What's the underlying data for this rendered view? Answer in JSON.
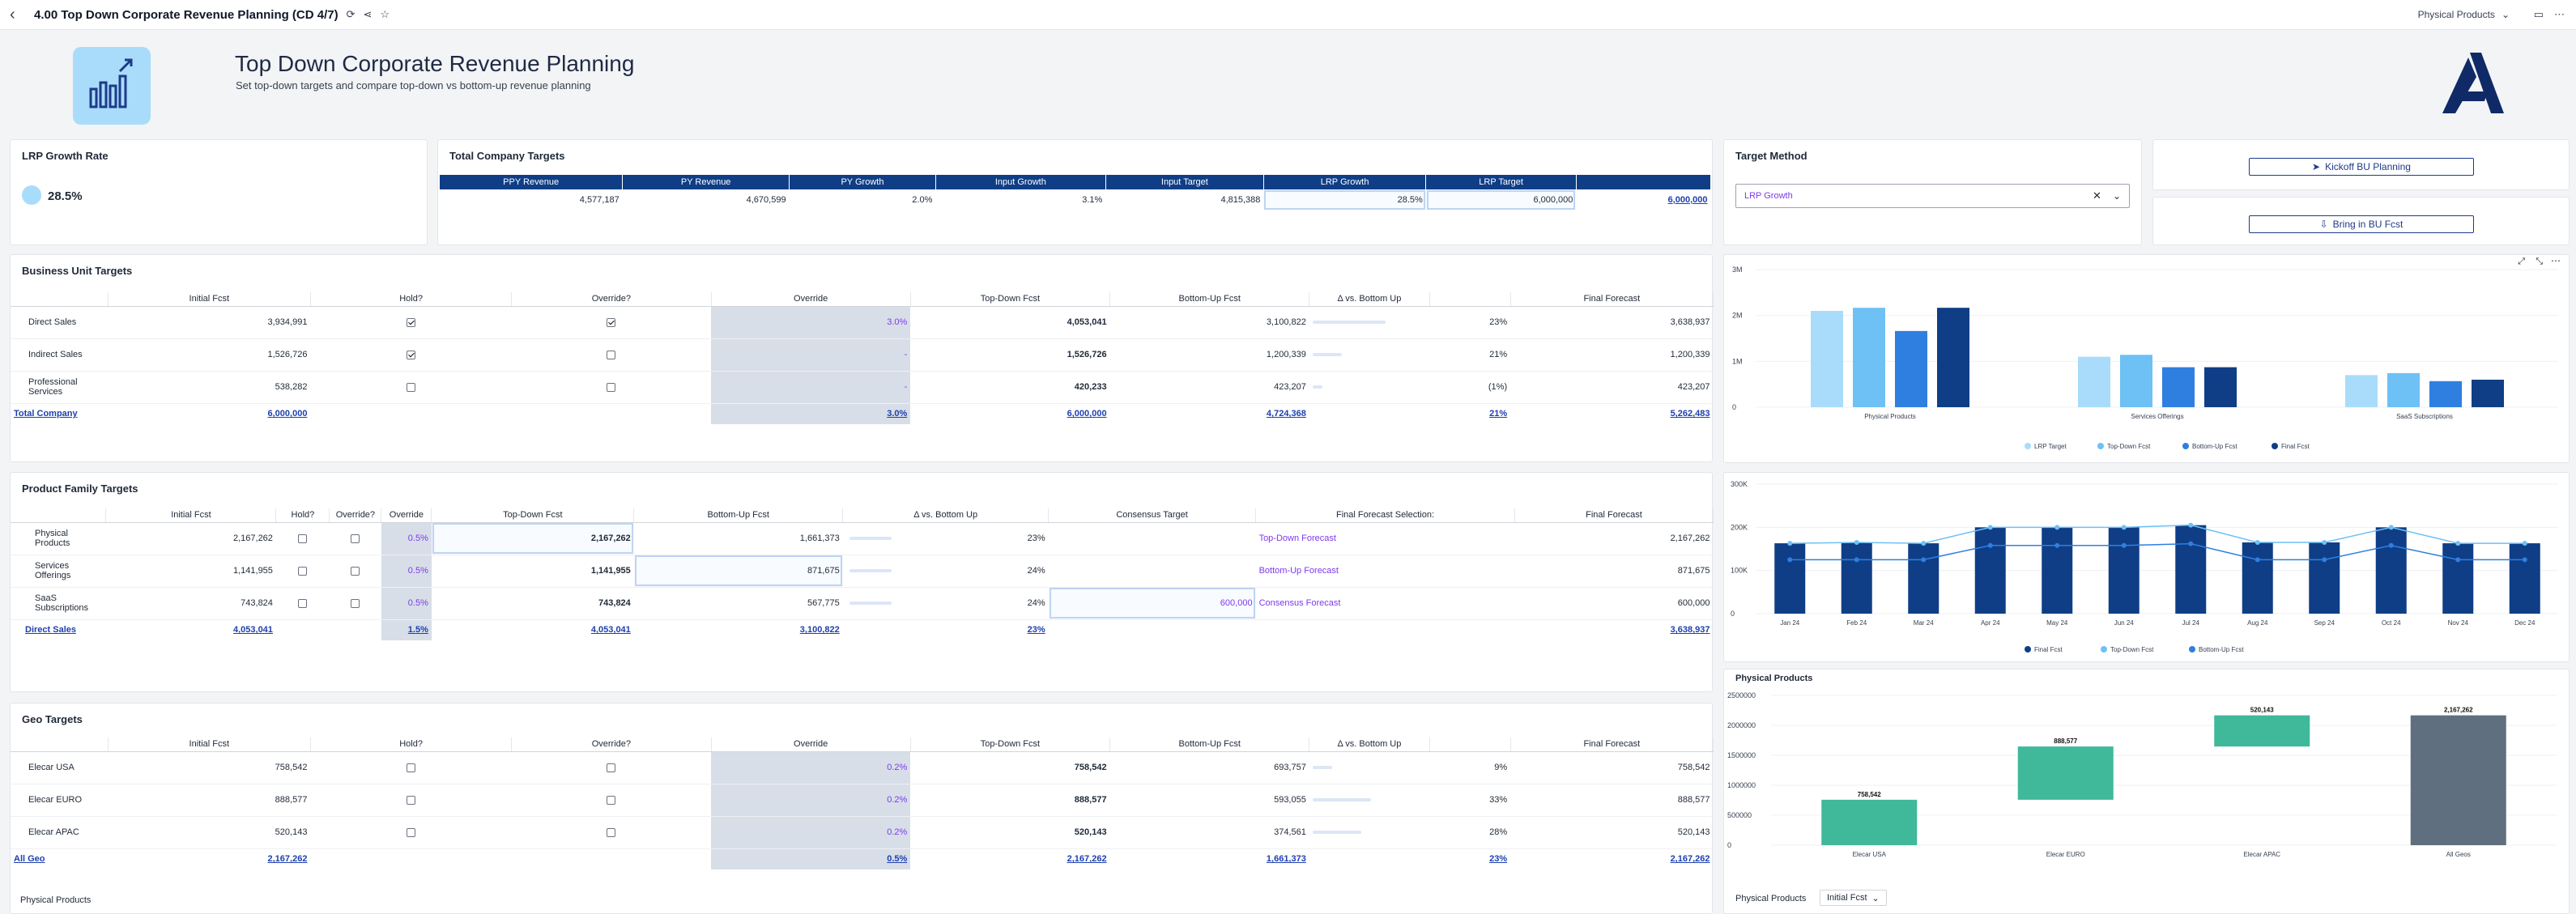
{
  "topbar": {
    "title": "4.00 Top Down Corporate Revenue Planning (CD 4/7)",
    "dropdown": "Physical Products"
  },
  "header": {
    "title": "Top Down Corporate Revenue Planning",
    "subtitle": "Set top-down targets and compare top-down vs bottom-up revenue planning"
  },
  "lrp": {
    "title": "LRP Growth Rate",
    "value": "28.5%"
  },
  "company": {
    "title": "Total Company Targets",
    "headers": [
      "PPY Revenue",
      "PY Revenue",
      "PY Growth",
      "Input Growth",
      "Input Target",
      "LRP Growth",
      "LRP Target",
      ""
    ],
    "values": [
      "4,577,187",
      "4,670,599",
      "2.0%",
      "3.1%",
      "4,815,388",
      "28.5%",
      "6,000,000",
      "6,000,000"
    ]
  },
  "target_method": {
    "title": "Target Method",
    "value": "LRP Growth"
  },
  "buttons": {
    "kickoff": "Kickoff BU Planning",
    "bring": "Bring in BU Fcst"
  },
  "bu": {
    "title": "Business Unit Targets",
    "headers": [
      "",
      "Initial Fcst",
      "Hold?",
      "Override?",
      "Override",
      "Top-Down Fcst",
      "Bottom-Up Fcst",
      "Δ vs. Bottom Up",
      "",
      "Final Forecast"
    ],
    "rows": [
      {
        "name": "Direct Sales",
        "initial": "3,934,991",
        "hold": true,
        "override_chk": true,
        "override": "3.0%",
        "td": "4,053,041",
        "bu": "3,100,822",
        "delta": "23%",
        "final": "3,638,937",
        "bar": 0.75
      },
      {
        "name": "Indirect Sales",
        "initial": "1,526,726",
        "hold": true,
        "override_chk": false,
        "override": "-",
        "td": "1,526,726",
        "bu": "1,200,339",
        "delta": "21%",
        "final": "1,200,339",
        "bar": 0.3
      },
      {
        "name": "Professional Services",
        "initial": "538,282",
        "hold": false,
        "override_chk": false,
        "override": "-",
        "td": "420,233",
        "bu": "423,207",
        "delta": "(1%)",
        "final": "423,207",
        "bar": 0.1
      }
    ],
    "total": {
      "name": "Total Company",
      "initial": "6,000,000",
      "override": "3.0%",
      "td": "6,000,000",
      "bu": "4,724,368",
      "delta": "21%",
      "final": "5,262,483"
    }
  },
  "pf": {
    "title": "Product Family Targets",
    "headers": [
      "",
      "Initial Fcst",
      "Hold?",
      "Override?",
      "Override",
      "Top-Down Fcst",
      "Bottom-Up Fcst",
      "Δ vs. Bottom Up",
      "Consensus Target",
      "Final Forecast Selection:",
      "Final Forecast"
    ],
    "rows": [
      {
        "name": "Physical Products",
        "initial": "2,167,262",
        "override": "0.5%",
        "td": "2,167,262",
        "bu": "1,661,373",
        "delta": "23%",
        "consensus": "",
        "sel": "Top-Down Forecast",
        "final": "2,167,262"
      },
      {
        "name": "Services Offerings",
        "initial": "1,141,955",
        "override": "0.5%",
        "td": "1,141,955",
        "bu": "871,675",
        "delta": "24%",
        "consensus": "",
        "sel": "Bottom-Up Forecast",
        "final": "871,675"
      },
      {
        "name": "SaaS Subscriptions",
        "initial": "743,824",
        "override": "0.5%",
        "td": "743,824",
        "bu": "567,775",
        "delta": "24%",
        "consensus": "600,000",
        "sel": "Consensus Forecast",
        "final": "600,000"
      }
    ],
    "total": {
      "name": "Direct Sales",
      "initial": "4,053,041",
      "override": "1.5%",
      "td": "4,053,041",
      "bu": "3,100,822",
      "delta": "23%",
      "final": "3,638,937"
    }
  },
  "geo": {
    "title": "Geo Targets",
    "headers": [
      "",
      "Initial Fcst",
      "Hold?",
      "Override?",
      "Override",
      "Top-Down Fcst",
      "Bottom-Up Fcst",
      "Δ vs. Bottom Up",
      "",
      "Final Forecast"
    ],
    "rows": [
      {
        "name": "Elecar USA",
        "initial": "758,542",
        "override": "0.2%",
        "td": "758,542",
        "bu": "693,757",
        "delta": "9%",
        "final": "758,542",
        "bar": 0.2
      },
      {
        "name": "Elecar EURO",
        "initial": "888,577",
        "override": "0.2%",
        "td": "888,577",
        "bu": "593,055",
        "delta": "33%",
        "final": "888,577",
        "bar": 0.6
      },
      {
        "name": "Elecar APAC",
        "initial": "520,143",
        "override": "0.2%",
        "td": "520,143",
        "bu": "374,561",
        "delta": "28%",
        "final": "520,143",
        "bar": 0.5
      }
    ],
    "total": {
      "name": "All Geo",
      "initial": "2,167,262",
      "override": "0.5%",
      "td": "2,167,262",
      "bu": "1,661,373",
      "delta": "23%",
      "final": "2,167,262"
    },
    "footer": "Physical Products"
  },
  "chart_data": [
    {
      "type": "bar",
      "categories": [
        "Physical Products",
        "Services Offerings",
        "SaaS Subscriptions"
      ],
      "series": [
        {
          "name": "LRP Target",
          "values": [
            2100000,
            1100000,
            700000
          ],
          "color": "#a9dcfa"
        },
        {
          "name": "Top-Down Fcst",
          "values": [
            2167262,
            1141955,
            743824
          ],
          "color": "#6ec1f4"
        },
        {
          "name": "Bottom-Up Fcst",
          "values": [
            1661373,
            871675,
            567775
          ],
          "color": "#2f7fe0"
        },
        {
          "name": "Final Fcst",
          "values": [
            2167262,
            871675,
            600000
          ],
          "color": "#0f3e86"
        }
      ],
      "ylim": [
        0,
        3000000
      ],
      "yticks": [
        "3M",
        "2M",
        "1M",
        "0"
      ],
      "legend": "bottom"
    },
    {
      "type": "bar",
      "categories": [
        "Jan 24",
        "Feb 24",
        "Mar 24",
        "Apr 24",
        "May 24",
        "Jun 24",
        "Jul 24",
        "Aug 24",
        "Sep 24",
        "Oct 24",
        "Nov 24",
        "Dec 24"
      ],
      "series": [
        {
          "name": "Final Fcst",
          "values": [
            163000,
            165000,
            163000,
            200000,
            200000,
            200000,
            205000,
            165000,
            165000,
            200000,
            163000,
            163000
          ],
          "color": "#0f3e86"
        },
        {
          "name": "Top-Down Fcst",
          "values": [
            163000,
            165000,
            163000,
            200000,
            200000,
            200000,
            205000,
            165000,
            165000,
            200000,
            163000,
            163000
          ],
          "color": "#6ec1f4"
        },
        {
          "name": "Bottom-Up Fcst",
          "values": [
            125000,
            125000,
            125000,
            158000,
            158000,
            158000,
            162000,
            125000,
            125000,
            158000,
            125000,
            125000
          ],
          "color": "#2f7fe0"
        }
      ],
      "ylim": [
        0,
        300000
      ],
      "yticks": [
        "300K",
        "200K",
        "100K",
        "0"
      ],
      "legend": "bottom"
    },
    {
      "type": "bar",
      "title": "Physical Products",
      "categories": [
        "Elecar USA",
        "Elecar EURO",
        "Elecar APAC",
        "All Geos"
      ],
      "waterfall": [
        {
          "label": "758,542",
          "start": 0,
          "end": 758542,
          "color": "#3fb99a"
        },
        {
          "label": "888,577",
          "start": 758542,
          "end": 1647119,
          "color": "#3fb99a"
        },
        {
          "label": "520,143",
          "start": 1647119,
          "end": 2167262,
          "color": "#3fb99a"
        },
        {
          "label": "2,167,262",
          "start": 0,
          "end": 2167262,
          "color": "#5f6f7f"
        }
      ],
      "ylim": [
        0,
        2500000
      ],
      "yticks": [
        "2500000",
        "2000000",
        "1500000",
        "1000000",
        "500000",
        "0"
      ],
      "footer_label": "Physical Products",
      "footer_select": "Initial Fcst"
    }
  ]
}
